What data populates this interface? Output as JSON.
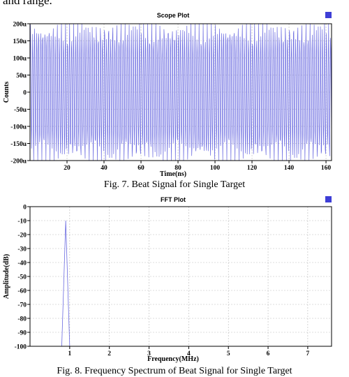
{
  "page": {
    "intro_text": "and range."
  },
  "colors": {
    "signal": "#6a6ae0",
    "legend_marker": "#3e3ed6",
    "grid": "#b9b9b9"
  },
  "chart_data": [
    {
      "type": "line",
      "title": "Scope Plot",
      "xlabel": "Time(ns)",
      "ylabel": "Counts",
      "xlim": [
        0,
        163
      ],
      "ylim": [
        -200,
        200
      ],
      "x_ticks": [
        20,
        40,
        60,
        80,
        100,
        120,
        140,
        160
      ],
      "y_ticks": [
        200,
        150,
        100,
        50,
        0,
        -50,
        -100,
        -150,
        -200
      ],
      "y_tick_labels": [
        "200u",
        "150u",
        "100u",
        "50u",
        "0",
        "-50u",
        "-100u",
        "-150u",
        "-200u"
      ],
      "grid": true,
      "legend": "top-right",
      "signal_model": {
        "components": [
          {
            "freq_per_ns": 0.9,
            "amp": 185
          },
          {
            "freq_per_ns": 1.37,
            "amp": 30
          }
        ],
        "sample_step_ns": 0.2
      },
      "caption": "Fig. 7. Beat Signal for Single Target"
    },
    {
      "type": "line",
      "title": "FFT Plot",
      "xlabel": "Frequency(MHz)",
      "ylabel": "Amplitude(dB)",
      "xlim": [
        0,
        7.6
      ],
      "ylim": [
        -100,
        0
      ],
      "x_ticks": [
        1,
        2,
        3,
        4,
        5,
        6,
        7
      ],
      "y_ticks": [
        0,
        -10,
        -20,
        -30,
        -40,
        -50,
        -60,
        -70,
        -80,
        -90,
        -100
      ],
      "grid": true,
      "legend": "top-right",
      "peak": {
        "x": 0.9,
        "y": -10
      },
      "series": [
        {
          "x": [
            0.8,
            0.9,
            1.0
          ],
          "y": [
            -100,
            -10,
            -100
          ]
        }
      ],
      "caption": "Fig. 8. Frequency Spectrum of Beat Signal for Single Target"
    }
  ]
}
